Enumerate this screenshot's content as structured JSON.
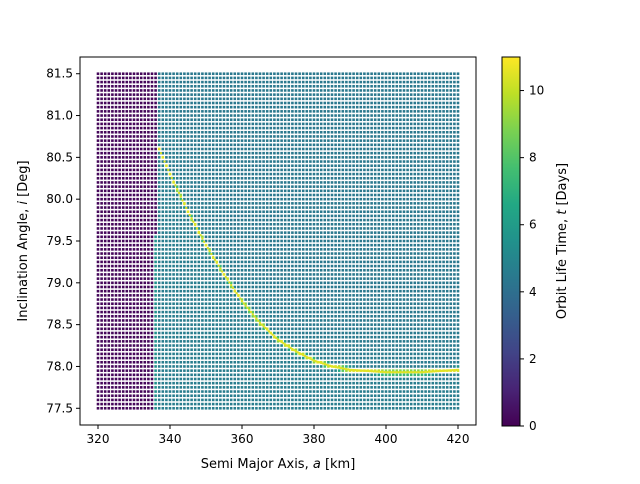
{
  "chart_data": {
    "type": "scatter",
    "subtype": "colored-grid-scatter",
    "title": "",
    "xlabel": "Semi Major Axis, $a$ [km]",
    "ylabel": "Inclination Angle, $i$ [Deg]",
    "colorbar_label": "Orbit Life Time, $t$ [Days]",
    "xlim": [
      315,
      425
    ],
    "ylim": [
      77.3,
      81.7
    ],
    "x_ticks": [
      320,
      340,
      360,
      380,
      400,
      420
    ],
    "x_tick_labels": [
      "320",
      "340",
      "360",
      "380",
      "400",
      "420"
    ],
    "y_ticks": [
      77.5,
      78.0,
      78.5,
      79.0,
      79.5,
      80.0,
      80.5,
      81.0,
      81.5
    ],
    "y_tick_labels": [
      "77.5",
      "78.0",
      "78.5",
      "79.0",
      "79.5",
      "80.0",
      "80.5",
      "81.0",
      "81.5"
    ],
    "colorbar_range": [
      0,
      11
    ],
    "colorbar_ticks": [
      0,
      2,
      4,
      6,
      8,
      10
    ],
    "colorbar_tick_labels": [
      "0",
      "2",
      "4",
      "6",
      "8",
      "10"
    ],
    "colormap": "viridis",
    "grid": false,
    "data_grid": {
      "a_range": [
        320,
        420
      ],
      "i_range": [
        77.5,
        81.5
      ],
      "lifetime_regions": [
        {
          "region": "a < 336 km",
          "lifetime_days": 0.2
        },
        {
          "region": "336-337 km, i < 79.6",
          "lifetime_days": 5.5
        },
        {
          "region": "336-337 km, i >= 79.6",
          "lifetime_days": 0.2
        },
        {
          "region": "a >= 337 km, i > resonance curve",
          "lifetime_days": 4.5
        },
        {
          "region": "a >= 337 km, i near resonance curve",
          "lifetime_days": 10.5
        },
        {
          "region": "a >= 337 km, i below resonance curve",
          "lifetime_days": 4.6
        }
      ],
      "resonance_curve": {
        "a": [
          337,
          340,
          345,
          350,
          355,
          360,
          365,
          370,
          375,
          380,
          385,
          390,
          400,
          410,
          420
        ],
        "i": [
          80.6,
          80.3,
          79.85,
          79.45,
          79.1,
          78.78,
          78.52,
          78.32,
          78.18,
          78.07,
          78.0,
          77.96,
          77.93,
          77.93,
          77.96
        ]
      }
    }
  }
}
